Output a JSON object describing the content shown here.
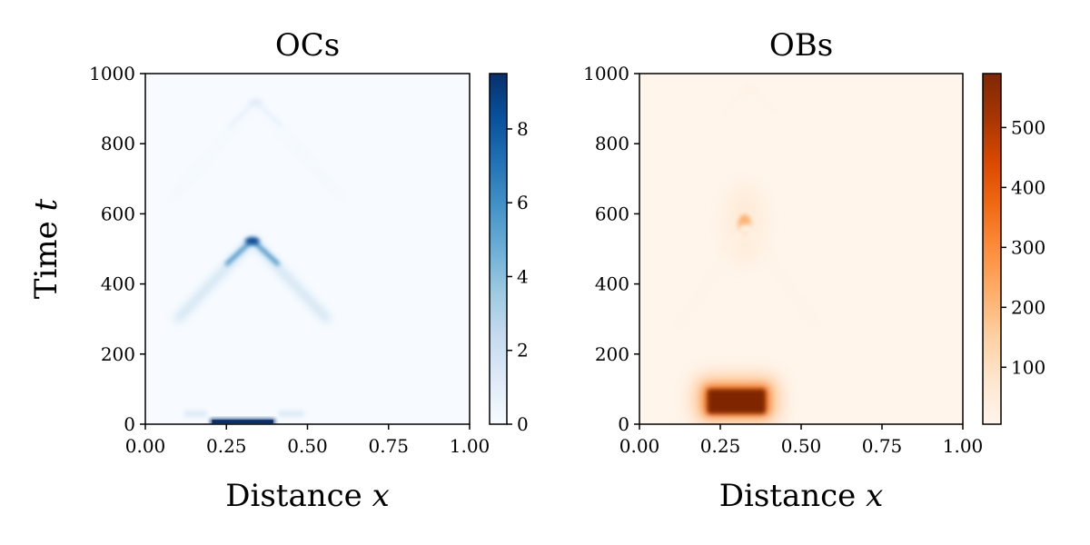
{
  "chart_data": [
    {
      "type": "heatmap",
      "title": "OCs",
      "xlabel": "Distance ",
      "xlabel_var": "x",
      "ylabel": "Time ",
      "ylabel_var": "t",
      "xlim": [
        0,
        1
      ],
      "ylim": [
        0,
        1000
      ],
      "xticks": [
        "0.00",
        "0.25",
        "0.50",
        "0.75",
        "1.00"
      ],
      "yticks": [
        "0",
        "200",
        "400",
        "600",
        "800",
        "1000"
      ],
      "colormap": "Blues",
      "colorbar_range": [
        0,
        9.5
      ],
      "colorbar_ticks": [
        "0",
        "2",
        "4",
        "6",
        "8"
      ],
      "colorbar_tick_values": [
        0,
        2,
        4,
        6,
        8
      ],
      "colors": {
        "low": "#f7fbff",
        "high": "#08306b"
      },
      "features": [
        {
          "kind": "band",
          "x0": 0.2,
          "x1": 0.4,
          "t0": 0,
          "t1": 15,
          "value": 9.5
        },
        {
          "kind": "band",
          "x0": 0.12,
          "x1": 0.19,
          "t0": 20,
          "t1": 40,
          "value": 1.2
        },
        {
          "kind": "band",
          "x0": 0.41,
          "x1": 0.49,
          "t0": 20,
          "t1": 40,
          "value": 1.2
        },
        {
          "kind": "peak",
          "apex_x": 0.33,
          "apex_t": 525,
          "arm_end_x_left": 0.1,
          "arm_end_x_right": 0.56,
          "arm_end_t": 300,
          "value": 8.5
        },
        {
          "kind": "peak",
          "apex_x": 0.34,
          "apex_t": 920,
          "arm_end_x_left": 0.09,
          "arm_end_x_right": 0.6,
          "arm_end_t": 650,
          "value": 1.0
        }
      ]
    },
    {
      "type": "heatmap",
      "title": "OBs",
      "xlabel": "Distance ",
      "xlabel_var": "x",
      "ylabel": "",
      "xlim": [
        0,
        1
      ],
      "ylim": [
        0,
        1000
      ],
      "xticks": [
        "0.00",
        "0.25",
        "0.50",
        "0.75",
        "1.00"
      ],
      "yticks": [
        "0",
        "200",
        "400",
        "600",
        "800",
        "1000"
      ],
      "colormap": "Oranges",
      "colorbar_range": [
        5,
        590
      ],
      "colorbar_ticks": [
        "100",
        "200",
        "300",
        "400",
        "500"
      ],
      "colorbar_tick_values": [
        100,
        200,
        300,
        400,
        500
      ],
      "colors": {
        "low": "#fff5eb",
        "high": "#7f2704"
      },
      "features": [
        {
          "kind": "block",
          "x0": 0.21,
          "x1": 0.39,
          "t0": 30,
          "t1": 100,
          "value": 590
        },
        {
          "kind": "spot",
          "x": 0.325,
          "t": 570,
          "value": 220
        },
        {
          "kind": "peak",
          "apex_x": 0.33,
          "apex_t": 560,
          "arm_end_x_left": 0.12,
          "arm_end_x_right": 0.55,
          "arm_end_t": 280,
          "value": 35
        },
        {
          "kind": "peak",
          "apex_x": 0.34,
          "apex_t": 960,
          "arm_end_x_left": 0.1,
          "arm_end_x_right": 0.6,
          "arm_end_t": 650,
          "value": 18
        }
      ]
    }
  ]
}
